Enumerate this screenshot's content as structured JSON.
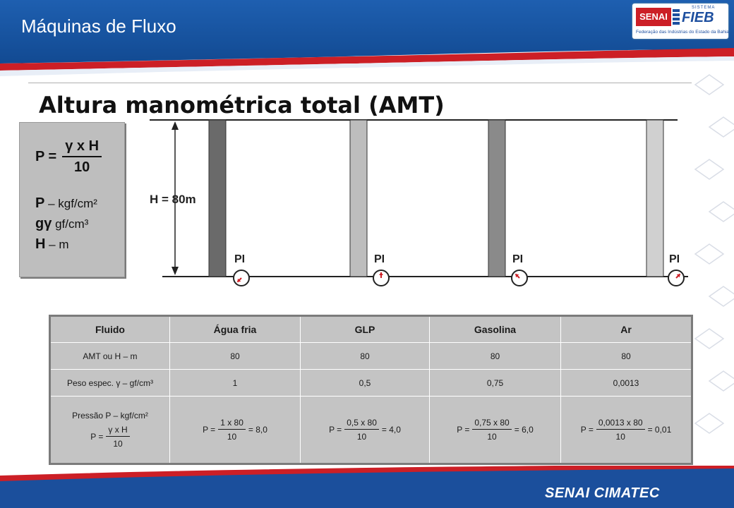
{
  "header": {
    "title": "Máquinas de Fluxo",
    "logo": {
      "senai": "SENAI",
      "sistema": "SISTEMA",
      "fieb": "FIEB",
      "federation": "Federação das Indústrias do Estado da Bahia"
    }
  },
  "slide": {
    "title": "Altura manométrica total (AMT)"
  },
  "formula_box": {
    "p_label": "P =",
    "numerator": "γ x H",
    "denominator": "10",
    "lines": [
      {
        "sym": "P",
        "text": " – kgf/cm²"
      },
      {
        "sym": "gγ",
        "text": " gf/cm³"
      },
      {
        "sym": "H",
        "text": " – m"
      }
    ]
  },
  "diagram": {
    "height_label": "H = 80m",
    "gauge_label": "PI",
    "tanks": [
      {
        "fluid": "Água fria",
        "shade": "#6a6a6a",
        "needle_deg": 225
      },
      {
        "fluid": "GLP",
        "shade": "#bdbdbd",
        "needle_deg": 90
      },
      {
        "fluid": "Gasolina",
        "shade": "#8a8a8a",
        "needle_deg": 135
      },
      {
        "fluid": "Ar",
        "shade": "#d0d0d0",
        "needle_deg": 45
      }
    ]
  },
  "table": {
    "headers": [
      "Fluido",
      "Água fria",
      "GLP",
      "Gasolina",
      "Ar"
    ],
    "row_amt": {
      "label": "AMT ou H – m",
      "values": [
        "80",
        "80",
        "80",
        "80"
      ]
    },
    "row_peso": {
      "label": "Peso espec. γ – gf/cm³",
      "values": [
        "1",
        "0,5",
        "0,75",
        "0,0013"
      ]
    },
    "row_pressao": {
      "label": "Pressão P – kgf/cm²",
      "formula_prefix": "P =",
      "formula_num": "γ x H",
      "formula_den": "10",
      "cells": [
        {
          "num": "1 x 80",
          "den": "10",
          "result": "= 8,0"
        },
        {
          "num": "0,5 x 80",
          "den": "10",
          "result": "= 4,0"
        },
        {
          "num": "0,75 x 80",
          "den": "10",
          "result": "= 6,0"
        },
        {
          "num": "0,0013 x 80",
          "den": "10",
          "result": "= 0,01"
        }
      ],
      "prefix": "P ="
    }
  },
  "footer": {
    "brand": "SENAI CIMATEC"
  },
  "colors": {
    "brand_blue": "#1b4f9c",
    "brand_red": "#cc1f26"
  }
}
